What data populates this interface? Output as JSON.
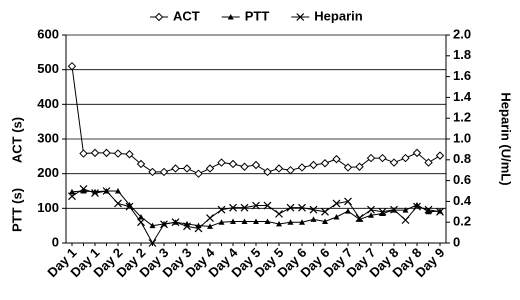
{
  "chart_data": {
    "type": "line",
    "y_label": "ACT (s)",
    "y_label_2": "PTT (s)",
    "y2_label": "Heparin (U/mL)",
    "categories": [
      "Day 1",
      null,
      "Day 1",
      null,
      "Day 2",
      null,
      "Day 2",
      null,
      "Day 3",
      null,
      "Day 3",
      null,
      "Day 4",
      null,
      "Day 4",
      null,
      "Day 5",
      null,
      "Day 5",
      null,
      "Day 6",
      null,
      "Day 6",
      null,
      "Day 7",
      null,
      "Day 7",
      null,
      "Day 8",
      null,
      "Day 8",
      null,
      "Day 9"
    ],
    "series": [
      {
        "name": "ACT",
        "color": "#000000",
        "marker": "diamond",
        "values": [
          510,
          258,
          260,
          260,
          258,
          256,
          228,
          205,
          205,
          215,
          215,
          200,
          215,
          232,
          228,
          220,
          225,
          205,
          215,
          210,
          218,
          225,
          230,
          242,
          218,
          220,
          245,
          245,
          232,
          245,
          260,
          232,
          252
        ]
      },
      {
        "name": "PTT",
        "color": "#000000",
        "marker": "triangle",
        "values": [
          148,
          150,
          148,
          150,
          150,
          110,
          75,
          50,
          55,
          60,
          55,
          50,
          48,
          60,
          62,
          62,
          62,
          62,
          55,
          60,
          60,
          68,
          62,
          75,
          92,
          68,
          80,
          85,
          95,
          95,
          110,
          90,
          92
        ]
      },
      {
        "name": "Heparin",
        "color": "#000000",
        "marker": "x",
        "axis": "y2",
        "values": [
          0.45,
          0.52,
          0.48,
          0.5,
          0.38,
          0.35,
          0.2,
          0,
          0.18,
          0.2,
          0.16,
          0.14,
          0.24,
          0.32,
          0.34,
          0.34,
          0.36,
          0.36,
          0.28,
          0.34,
          0.34,
          0.32,
          0.3,
          0.38,
          0.4,
          0.24,
          0.32,
          0.3,
          0.32,
          0.22,
          0.35,
          0.32,
          0.3
        ]
      }
    ],
    "ylim": [
      0,
      600
    ],
    "yticks": [
      0,
      100,
      200,
      300,
      400,
      500,
      600
    ],
    "y2lim": [
      0,
      2
    ],
    "y2ticks": [
      0,
      0.2,
      0.4,
      0.6,
      0.8,
      {
        "value": 1,
        "label": "1.0"
      },
      1.2,
      1.4,
      1.6,
      1.8,
      {
        "value": 2,
        "label": "2.0"
      }
    ],
    "grid": true,
    "legend": "top"
  }
}
